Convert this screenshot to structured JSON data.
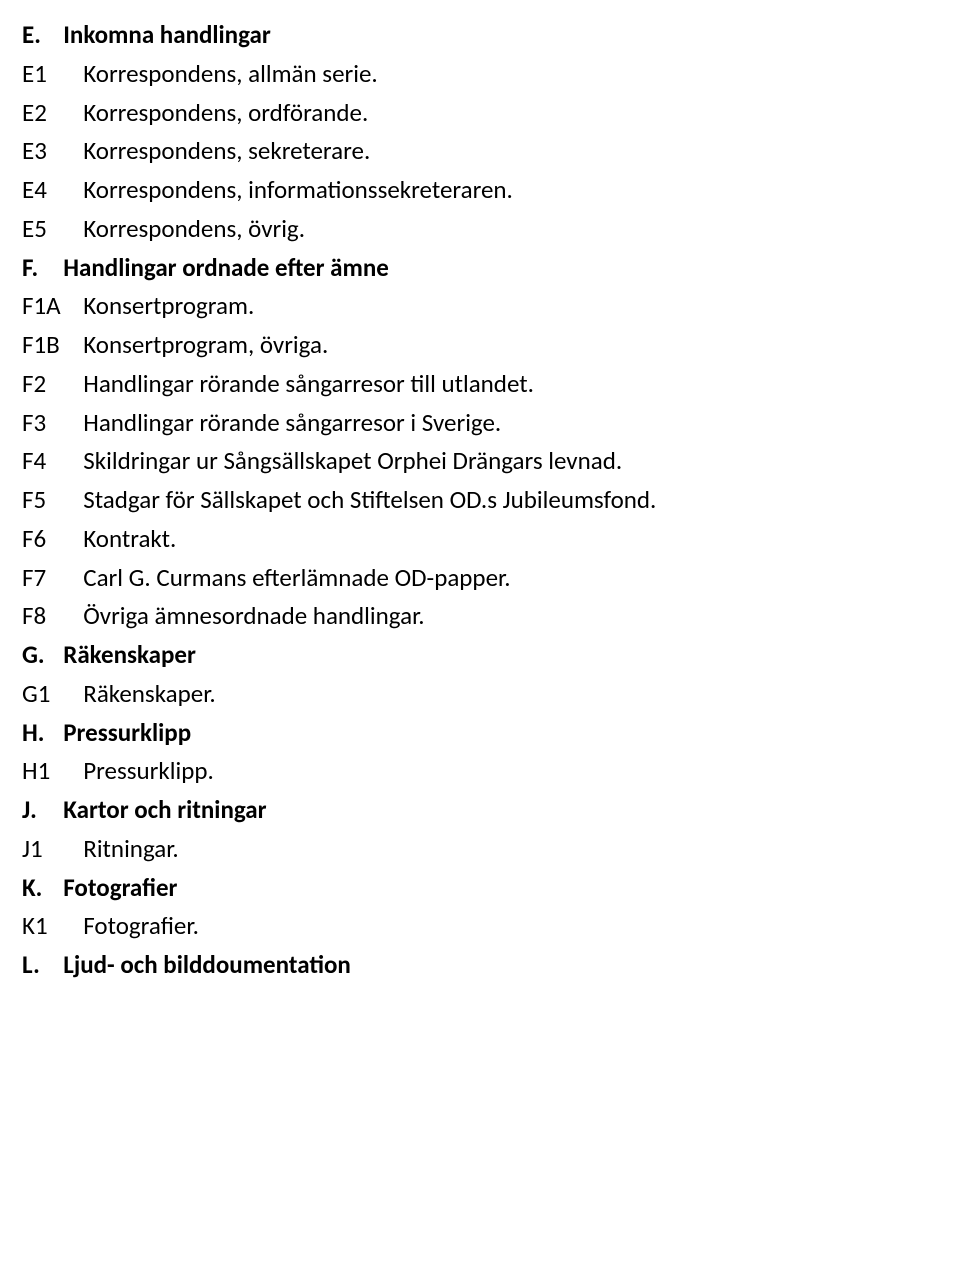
{
  "sections": [
    {
      "letter": "E.",
      "title": "Inkomna handlingar",
      "items": [
        {
          "code": "E1",
          "text": "Korrespondens, allmän serie."
        },
        {
          "code": "E2",
          "text": "Korrespondens, ordförande."
        },
        {
          "code": "E3",
          "text": "Korrespondens, sekreterare."
        },
        {
          "code": "E4",
          "text": "Korrespondens, informationssekreteraren."
        },
        {
          "code": "E5",
          "text": "Korrespondens, övrig."
        }
      ]
    },
    {
      "letter": "F.",
      "title": "Handlingar ordnade efter ämne",
      "items": [
        {
          "code": "F1A",
          "text": "Konsertprogram."
        },
        {
          "code": "F1B",
          "text": "Konsertprogram, övriga."
        },
        {
          "code": "F2",
          "text": "Handlingar rörande sångarresor till utlandet."
        },
        {
          "code": "F3",
          "text": "Handlingar rörande sångarresor i Sverige."
        },
        {
          "code": "F4",
          "text": "Skildringar ur Sångsällskapet Orphei Drängars levnad."
        },
        {
          "code": "F5",
          "text": "Stadgar för Sällskapet och Stiftelsen OD.s Jubileumsfond."
        },
        {
          "code": "F6",
          "text": "Kontrakt."
        },
        {
          "code": "F7",
          "text": "Carl G. Curmans efterlämnade OD-papper."
        },
        {
          "code": "F8",
          "text": "Övriga ämnesordnade handlingar."
        }
      ]
    },
    {
      "letter": "G.",
      "title": "Räkenskaper",
      "items": [
        {
          "code": "G1",
          "text": "Räkenskaper."
        }
      ]
    },
    {
      "letter": "H.",
      "title": "Pressurklipp",
      "items": [
        {
          "code": "H1",
          "text": "Pressurklipp."
        }
      ]
    },
    {
      "letter": "J.",
      "title": "Kartor och ritningar",
      "items": [
        {
          "code": "J1",
          "text": "Ritningar."
        }
      ]
    },
    {
      "letter": "K.",
      "title": "Fotografier",
      "items": [
        {
          "code": "K1",
          "text": "Fotografier."
        }
      ]
    },
    {
      "letter": "L.",
      "title": "Ljud- och bilddoumentation",
      "items": []
    }
  ]
}
